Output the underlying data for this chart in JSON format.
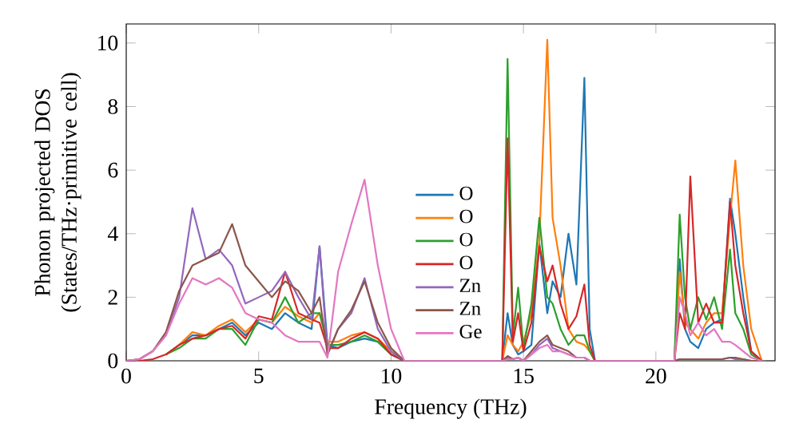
{
  "chart_data": {
    "type": "line",
    "xlabel": "Frequency (THz)",
    "ylabel": "Phonon projected DOS (States/THz·primitive cell)",
    "xlim": [
      0,
      24.5
    ],
    "ylim": [
      0,
      10.6
    ],
    "xticks": [
      0,
      5,
      10,
      15,
      20
    ],
    "yticks": [
      0,
      2,
      4,
      6,
      8,
      10
    ],
    "legend": "bottom",
    "marker": "none",
    "line_style": "solid",
    "x": [
      0,
      0.5,
      1,
      1.5,
      2,
      2.5,
      3,
      3.5,
      4,
      4.5,
      5,
      5.5,
      6,
      6.5,
      7,
      7.3,
      7.6,
      8,
      8.5,
      9,
      9.5,
      10,
      10.5,
      14.2,
      14.4,
      14.6,
      14.8,
      15,
      15.3,
      15.6,
      15.9,
      16.1,
      16.4,
      16.7,
      17,
      17.3,
      17.5,
      17.7,
      20.7,
      20.9,
      21.1,
      21.3,
      21.6,
      21.9,
      22.2,
      22.5,
      22.8,
      23,
      23.3,
      23.6,
      24
    ],
    "series": [
      {
        "name": "O",
        "color": "#1f77b4",
        "values": [
          null,
          null,
          null,
          0.2,
          0.5,
          0.8,
          0.8,
          1.0,
          1.2,
          0.8,
          1.2,
          1.0,
          1.5,
          1.2,
          1.0,
          3.6,
          0.5,
          0.4,
          0.6,
          0.7,
          0.6,
          0.2,
          0,
          0,
          1.5,
          0.5,
          0.2,
          0.3,
          0.5,
          3.7,
          1.5,
          2.5,
          2.0,
          4.0,
          2.4,
          8.9,
          1.0,
          0,
          0,
          3.2,
          1.0,
          0.6,
          0.4,
          1.0,
          1.2,
          1.3,
          5.1,
          4.0,
          2.0,
          0.3,
          0
        ]
      },
      {
        "name": "O",
        "color": "#ff7f0e",
        "values": [
          null,
          null,
          null,
          0.2,
          0.5,
          0.9,
          0.8,
          1.1,
          1.3,
          0.9,
          1.3,
          1.2,
          1.7,
          1.4,
          1.2,
          1.5,
          0.6,
          0.6,
          0.8,
          0.9,
          0.7,
          0.3,
          0,
          0,
          0.8,
          0.5,
          0.3,
          0.6,
          1.5,
          3.8,
          10.1,
          4.5,
          3.0,
          1.0,
          0.6,
          0.5,
          0.3,
          0,
          0,
          2.8,
          1.2,
          1.0,
          0.7,
          1.2,
          1.5,
          1.5,
          4.5,
          6.3,
          3.0,
          1.0,
          0
        ]
      },
      {
        "name": "O",
        "color": "#2ca02c",
        "values": [
          null,
          null,
          null,
          0.2,
          0.4,
          0.7,
          0.7,
          1.0,
          1.0,
          0.5,
          1.3,
          1.2,
          2.0,
          1.2,
          1.5,
          1.5,
          0.5,
          0.5,
          0.6,
          0.8,
          0.6,
          0.2,
          0,
          0,
          9.5,
          0.8,
          2.3,
          0.4,
          1.8,
          4.5,
          2.0,
          1.8,
          1.0,
          0.5,
          0.8,
          0.8,
          0.3,
          0,
          0,
          4.6,
          2.0,
          1.0,
          2.0,
          1.3,
          2.0,
          1.0,
          3.5,
          1.5,
          1.0,
          0.2,
          0
        ]
      },
      {
        "name": "O",
        "color": "#d62728",
        "values": [
          0,
          0,
          0.05,
          0.2,
          0.5,
          0.7,
          0.8,
          1.0,
          1.1,
          0.7,
          1.4,
          1.3,
          2.8,
          1.5,
          1.3,
          1.2,
          0.4,
          0.4,
          0.7,
          0.9,
          0.7,
          0.2,
          0,
          0,
          7.0,
          0.6,
          1.5,
          0.3,
          1.2,
          3.6,
          2.5,
          3.0,
          1.8,
          1.0,
          1.4,
          2.4,
          0.5,
          0,
          0,
          1.5,
          1.0,
          5.8,
          1.2,
          1.8,
          1.2,
          1.2,
          5.0,
          3.0,
          1.5,
          0.3,
          0
        ]
      },
      {
        "name": "Zn",
        "color": "#9467bd",
        "values": [
          0,
          0.05,
          0.3,
          0.8,
          2.0,
          4.8,
          3.2,
          3.5,
          3.0,
          1.8,
          2.0,
          2.2,
          2.8,
          2.0,
          1.3,
          3.6,
          0.2,
          1.0,
          1.5,
          2.6,
          1.0,
          0.3,
          0,
          0,
          0.1,
          0.05,
          0.1,
          0,
          0.2,
          0.5,
          0.7,
          0.4,
          0.3,
          0.2,
          0.1,
          0.1,
          0,
          0,
          0,
          0.05,
          0.05,
          0.05,
          0.05,
          0.05,
          0.05,
          0.05,
          0.1,
          0.05,
          0.05,
          0,
          0
        ]
      },
      {
        "name": "Zn",
        "color": "#8c564b",
        "values": [
          0,
          0.05,
          0.3,
          0.9,
          2.2,
          3.0,
          3.2,
          3.4,
          4.3,
          3.0,
          2.5,
          2.0,
          2.5,
          2.2,
          1.5,
          2.0,
          0.2,
          1.0,
          1.6,
          2.5,
          1.2,
          0.4,
          0,
          0,
          0.15,
          0.05,
          0.1,
          0,
          0.3,
          0.6,
          0.8,
          0.5,
          0.4,
          0.3,
          0.1,
          0.1,
          0,
          0,
          0,
          0.05,
          0.05,
          0.05,
          0.05,
          0.05,
          0.05,
          0.05,
          0.1,
          0.1,
          0.05,
          0,
          0
        ]
      },
      {
        "name": "Ge",
        "color": "#e377c2",
        "values": [
          0,
          0.05,
          0.3,
          0.8,
          1.8,
          2.6,
          2.4,
          2.6,
          2.3,
          1.5,
          1.3,
          1.2,
          0.8,
          0.6,
          0.6,
          0.6,
          0.1,
          2.8,
          4.3,
          5.7,
          3.0,
          1.0,
          0,
          0,
          0.05,
          0.05,
          0.1,
          0,
          0.2,
          0.4,
          0.5,
          0.3,
          0.3,
          0.2,
          0.1,
          0.1,
          0,
          0,
          0,
          2.0,
          1.5,
          0.8,
          1.2,
          0.8,
          1.0,
          0.6,
          0.6,
          0.5,
          0.3,
          0.1,
          0
        ]
      }
    ]
  }
}
